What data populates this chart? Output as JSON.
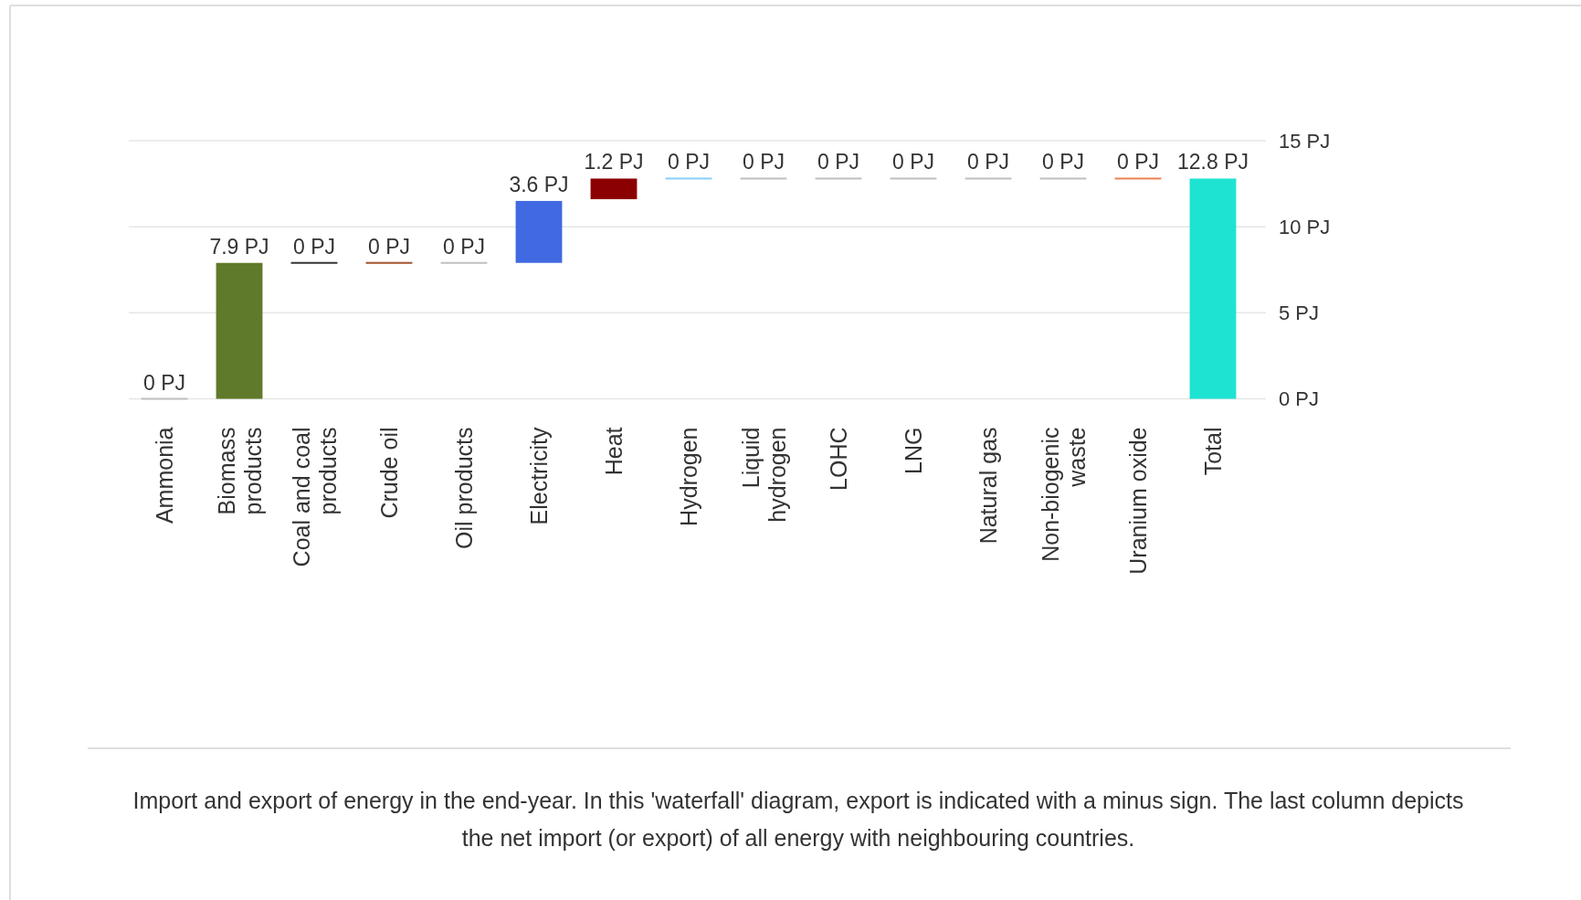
{
  "chart_data": {
    "type": "bar",
    "categories": [
      "Ammonia",
      "Biomass products",
      "Coal and coal products",
      "Crude oil",
      "Oil products",
      "Electricity",
      "Heat",
      "Hydrogen",
      "Liquid hydrogen",
      "LOHC",
      "LNG",
      "Natural gas",
      "Non-biogenic waste",
      "Uranium oxide",
      "Total"
    ],
    "values": [
      0,
      7.9,
      0,
      0,
      0,
      3.6,
      1.2,
      0,
      0,
      0,
      0,
      0,
      0,
      0,
      12.8
    ],
    "base": [
      0,
      0,
      7.9,
      7.9,
      7.9,
      7.9,
      11.6,
      12.8,
      12.8,
      12.8,
      12.8,
      12.8,
      12.8,
      12.8,
      0
    ],
    "colors": [
      "#bfbfbf",
      "#5f7a2a",
      "#333333",
      "#a0522d",
      "#bfbfbf",
      "#4169e1",
      "#8b0000",
      "#87cefa",
      "#bfbfbf",
      "#bfbfbf",
      "#bfbfbf",
      "#bfbfbf",
      "#bfbfbf",
      "#e8834f",
      "#1ee3d3"
    ],
    "value_labels": [
      "0 PJ",
      "7.9 PJ",
      "0 PJ",
      "0 PJ",
      "0 PJ",
      "3.6 PJ",
      "1.2 PJ",
      "0 PJ",
      "0 PJ",
      "0 PJ",
      "0 PJ",
      "0 PJ",
      "0 PJ",
      "0 PJ",
      "12.8 PJ"
    ],
    "ylim": [
      0,
      15
    ],
    "yticks": [
      {
        "value": 0,
        "label": "0 PJ"
      },
      {
        "value": 5,
        "label": "5 PJ"
      },
      {
        "value": 10,
        "label": "10 PJ"
      },
      {
        "value": 15,
        "label": "15 PJ"
      }
    ],
    "grid": "y",
    "annotations": [
      "Import and export of energy in the end-year. In this 'waterfall' diagram, export is indicated with a minus sign. The last column depicts the net import (or export) of all energy with neighbouring countries."
    ]
  }
}
